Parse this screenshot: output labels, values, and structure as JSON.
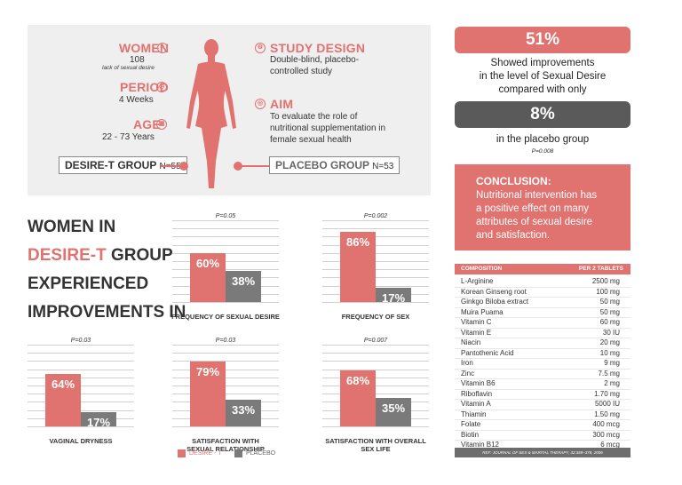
{
  "colors": {
    "desire_t": "#e0726f",
    "placebo": "#7a7a7a",
    "panel_bg": "#efefef",
    "dark_pill": "#5a5a5a"
  },
  "study": {
    "women_label": "WOMEN",
    "women_value": "108",
    "women_note": "lack of sexual desire",
    "period_label": "PERIOD",
    "period_value": "4 Weeks",
    "age_label": "AGE",
    "age_value": "22 - 73 Years",
    "design_label": "STUDY DESIGN",
    "design_value_1": "Double-blind, placebo-",
    "design_value_2": "controlled study",
    "aim_label": "AIM",
    "aim_value_1": "To evaluate the role of",
    "aim_value_2": "nutritional supplementation in",
    "aim_value_3": "female sexual health",
    "desire_group": "DESIRE-T GROUP",
    "desire_n": "N=55",
    "placebo_group": "PLACEBO GROUP",
    "placebo_n": "N=53"
  },
  "headline": {
    "line1": "WOMEN IN",
    "line2_accent": "DESIRE-T",
    "line2_rest": " GROUP",
    "line3": "EXPERIENCED",
    "line4": "IMPROVEMENTS IN"
  },
  "chart_data": [
    {
      "type": "bar",
      "title": "FREQUENCY OF SEXUAL DESIRE",
      "title_line2": "",
      "pvalue": "P=0.05",
      "categories": [
        "Desire-T",
        "Placebo"
      ],
      "values": [
        60,
        38
      ],
      "labels": [
        "60%",
        "38%"
      ],
      "ylim": [
        0,
        100
      ]
    },
    {
      "type": "bar",
      "title": "FREQUENCY OF SEX",
      "title_line2": "",
      "pvalue": "P=0.002",
      "categories": [
        "Desire-T",
        "Placebo"
      ],
      "values": [
        86,
        17
      ],
      "labels": [
        "86%",
        "17%"
      ],
      "ylim": [
        0,
        100
      ]
    },
    {
      "type": "bar",
      "title": "VAGINAL DRYNESS",
      "title_line2": "",
      "pvalue": "P=0.03",
      "categories": [
        "Desire-T",
        "Placebo"
      ],
      "values": [
        64,
        17
      ],
      "labels": [
        "64%",
        "17%"
      ],
      "ylim": [
        0,
        100
      ]
    },
    {
      "type": "bar",
      "title": "SATISFACTION WITH",
      "title_line2": "SEXUAL RELATIONSHIP",
      "pvalue": "P=0.03",
      "categories": [
        "Desire-T",
        "Placebo"
      ],
      "values": [
        79,
        33
      ],
      "labels": [
        "79%",
        "33%"
      ],
      "ylim": [
        0,
        100
      ]
    },
    {
      "type": "bar",
      "title": "SATISFACTION WITH OVERALL",
      "title_line2": "SEX LIFE",
      "pvalue": "P=0.007",
      "categories": [
        "Desire-T",
        "Placebo"
      ],
      "values": [
        68,
        35
      ],
      "labels": [
        "68%",
        "35%"
      ],
      "ylim": [
        0,
        100
      ]
    }
  ],
  "legend": {
    "desire": "DESIRE - T",
    "placebo": "PLACEBO"
  },
  "results": {
    "pct_desire": "51%",
    "text1_line1": "Showed improvements",
    "text1_line2": "in the level of Sexual Desire",
    "text1_line3": "compared with only",
    "pct_placebo": "8%",
    "text2": "in the placebo group",
    "pvalue": "P=0.008"
  },
  "conclusion": {
    "title": "CONCLUSION:",
    "line1": "Nutritional intervention has",
    "line2": "a positive effect on many",
    "line3": "attributes of sexual desire",
    "line4": "and satisfaction."
  },
  "composition": {
    "header_name": "COMPOSITION",
    "header_value": "PER 2 TABLETS",
    "rows": [
      {
        "name": "L-Arginine",
        "value": "2500 mg"
      },
      {
        "name": "Korean Ginseng root",
        "value": "100 mg"
      },
      {
        "name": "Ginkgo Biloba extract",
        "value": "50 mg"
      },
      {
        "name": "Muira Puama",
        "value": "50 mg"
      },
      {
        "name": "Vitamin C",
        "value": "60 mg"
      },
      {
        "name": "Vitamin E",
        "value": "30 IU"
      },
      {
        "name": "Niacin",
        "value": "20 mg"
      },
      {
        "name": "Pantothenic Acid",
        "value": "10 mg"
      },
      {
        "name": "Iron",
        "value": "9 mg"
      },
      {
        "name": "Zinc",
        "value": "7.5 mg"
      },
      {
        "name": "Vitamin B6",
        "value": "2 mg"
      },
      {
        "name": "Riboflavin",
        "value": "1.70 mg"
      },
      {
        "name": "Vitamin A",
        "value": "5000 IU"
      },
      {
        "name": "Thiamin",
        "value": "1.50 mg"
      },
      {
        "name": "Folate",
        "value": "400 mcg"
      },
      {
        "name": "Biotin",
        "value": "300 mcg"
      },
      {
        "name": "Vitamin B12",
        "value": "6 mcg"
      }
    ],
    "reference": "REF: JOURNAL OF SEX & MARITAL THERAPY, 32:369–378, 2006"
  }
}
